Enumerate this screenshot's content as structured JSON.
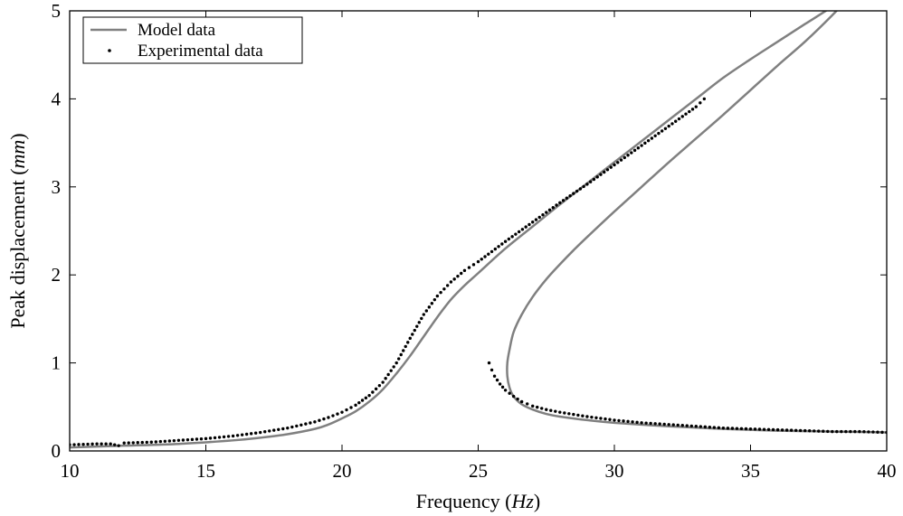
{
  "chart_data": {
    "type": "line",
    "xlabel": {
      "prefix": "Frequency (",
      "unit": "Hz",
      "suffix": ")"
    },
    "ylabel": {
      "prefix": "Peak displacement (",
      "unit": "mm",
      "suffix": ")"
    },
    "xlim": [
      10,
      40
    ],
    "ylim": [
      0,
      5
    ],
    "xticks": [
      10,
      15,
      20,
      25,
      30,
      35,
      40
    ],
    "yticks": [
      0,
      1,
      2,
      3,
      4,
      5
    ],
    "grid": false,
    "legend": {
      "placement": "top-left",
      "entries": [
        "Model data",
        "Experimental data"
      ]
    },
    "colors": {
      "model": "#808080",
      "experimental": "#000000"
    },
    "series": [
      {
        "name": "Model data",
        "kind": "line",
        "x": [
          10,
          12,
          14,
          16,
          17,
          18,
          19,
          19.5,
          20,
          20.5,
          21,
          21.5,
          22,
          22.5,
          23,
          23.5,
          24,
          24.5,
          25,
          26,
          27,
          28,
          29,
          30,
          31,
          32,
          33,
          34,
          35,
          36,
          37,
          38,
          38.8,
          38.5,
          38,
          37,
          36,
          35,
          34,
          33,
          32,
          31,
          30,
          29,
          28.5,
          28,
          27.5,
          27,
          26.6,
          26.3,
          26.15,
          26.07,
          26.07,
          26.15,
          26.3,
          26.6,
          27,
          27.5,
          28,
          29,
          30,
          32,
          34,
          36,
          38,
          40
        ],
        "y": [
          0.04,
          0.06,
          0.08,
          0.12,
          0.15,
          0.19,
          0.25,
          0.3,
          0.37,
          0.45,
          0.56,
          0.7,
          0.88,
          1.08,
          1.3,
          1.52,
          1.72,
          1.88,
          2.02,
          2.3,
          2.55,
          2.8,
          3.04,
          3.28,
          3.52,
          3.76,
          4.0,
          4.24,
          4.45,
          4.65,
          4.85,
          5.05,
          5.25,
          5.12,
          4.95,
          4.65,
          4.38,
          4.1,
          3.82,
          3.55,
          3.28,
          3.0,
          2.72,
          2.43,
          2.28,
          2.12,
          1.95,
          1.75,
          1.55,
          1.35,
          1.15,
          1.0,
          0.85,
          0.72,
          0.62,
          0.53,
          0.47,
          0.42,
          0.39,
          0.35,
          0.32,
          0.28,
          0.25,
          0.23,
          0.22,
          0.21
        ]
      },
      {
        "name": "Experimental data",
        "kind": "scatter",
        "segments": [
          {
            "x": [
              10,
              11,
              11.5,
              11.8,
              12,
              13,
              14,
              15,
              16,
              17,
              18,
              19,
              19.5,
              20,
              20.5,
              21,
              21.5,
              22,
              22.5,
              23,
              23.5,
              24,
              24.5,
              25,
              26,
              27,
              28,
              29,
              30,
              31,
              32,
              33,
              33.3
            ],
            "y": [
              0.07,
              0.08,
              0.08,
              0.06,
              0.09,
              0.1,
              0.12,
              0.14,
              0.17,
              0.21,
              0.26,
              0.33,
              0.38,
              0.44,
              0.52,
              0.63,
              0.78,
              1.0,
              1.28,
              1.55,
              1.76,
              1.92,
              2.05,
              2.15,
              2.38,
              2.6,
              2.82,
              3.03,
              3.25,
              3.47,
              3.69,
              3.91,
              4.0
            ]
          },
          {
            "x": [
              25.4,
              25.5,
              25.6,
              25.8,
              26,
              26.3,
              26.6,
              27,
              27.5,
              28,
              29,
              30,
              31,
              32,
              33,
              34,
              35,
              36,
              37,
              38,
              39,
              40
            ],
            "y": [
              1.0,
              0.92,
              0.85,
              0.76,
              0.69,
              0.62,
              0.56,
              0.51,
              0.47,
              0.44,
              0.39,
              0.35,
              0.32,
              0.3,
              0.28,
              0.26,
              0.25,
              0.24,
              0.23,
              0.22,
              0.22,
              0.21
            ]
          }
        ]
      }
    ]
  }
}
